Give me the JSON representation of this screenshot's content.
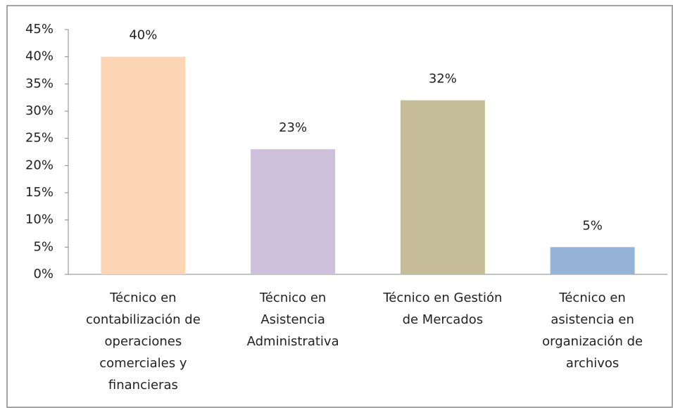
{
  "chart_data": {
    "type": "bar",
    "categories": [
      "Técnico en contabilización de operaciones comerciales y financieras",
      "Técnico en Asistencia Administrativa",
      "Técnico en Gestión de Mercados",
      "Técnico en asistencia en organización de archivos"
    ],
    "values": [
      40,
      23,
      32,
      5
    ],
    "value_labels": [
      "40%",
      "23%",
      "32%",
      "5%"
    ],
    "colors": [
      "#fcd5b5",
      "#ccc0da",
      "#c4bd97",
      "#95b3d7"
    ],
    "ylim": [
      0,
      45
    ],
    "yticks": [
      {
        "value": 0,
        "label": "0%"
      },
      {
        "value": 5,
        "label": "5%"
      },
      {
        "value": 10,
        "label": "10%"
      },
      {
        "value": 15,
        "label": "15%"
      },
      {
        "value": 20,
        "label": "20%"
      },
      {
        "value": 25,
        "label": "25%"
      },
      {
        "value": 30,
        "label": "30%"
      },
      {
        "value": 35,
        "label": "35%"
      },
      {
        "value": 40,
        "label": "40%"
      },
      {
        "value": 45,
        "label": "45%"
      }
    ],
    "grid": false
  }
}
